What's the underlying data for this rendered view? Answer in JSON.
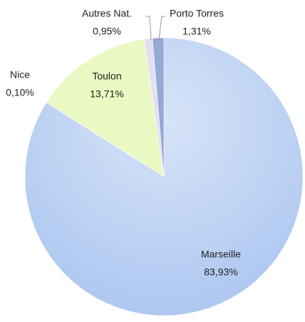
{
  "chart_data": {
    "type": "pie",
    "categories": [
      "Marseille",
      "Nice",
      "Toulon",
      "Autres Nat.",
      "Porto Torres"
    ],
    "values": [
      83.93,
      0.1,
      13.71,
      0.95,
      1.31
    ],
    "value_labels": [
      "83,93%",
      "0,10%",
      "13,71%",
      "0,95%",
      "1,31%"
    ],
    "colors": [
      "#b9cff3",
      "#f4d6d6",
      "#eaf9c4",
      "#e4def3",
      "#94a9d4"
    ]
  }
}
